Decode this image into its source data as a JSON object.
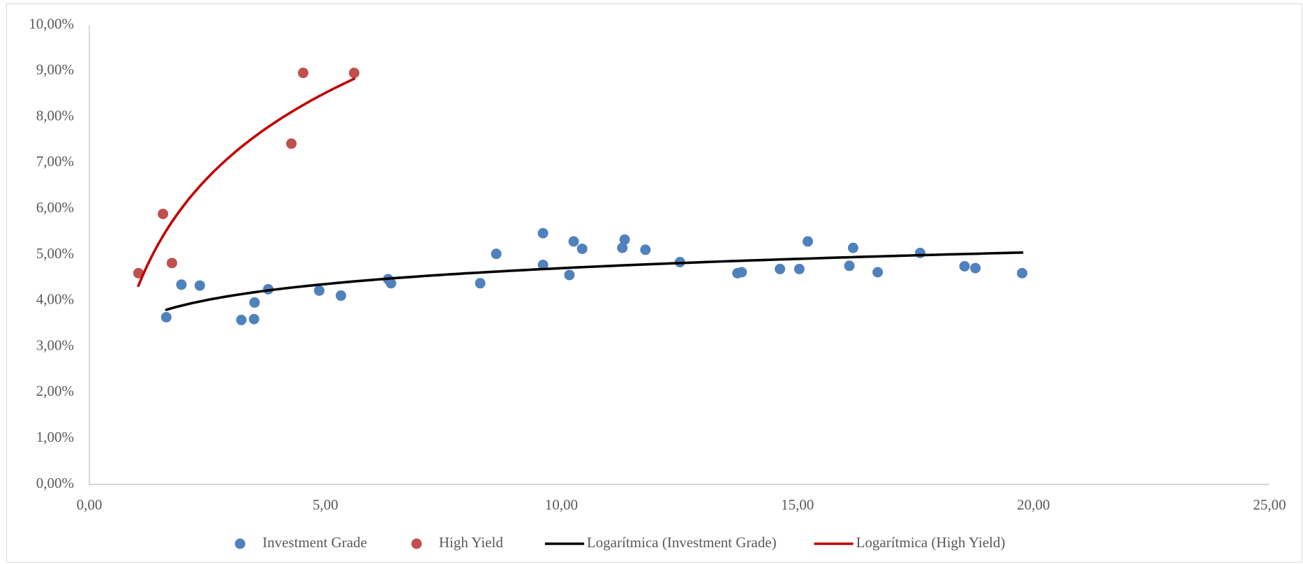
{
  "chart_data": {
    "type": "scatter",
    "xlim": [
      0,
      25
    ],
    "ylim": [
      0,
      10
    ],
    "grid": false,
    "legend": "bottom",
    "xticks": [
      {
        "value": 0,
        "label": "0,00"
      },
      {
        "value": 5,
        "label": "5,00"
      },
      {
        "value": 10,
        "label": "10,00"
      },
      {
        "value": 15,
        "label": "15,00"
      },
      {
        "value": 20,
        "label": "20,00"
      },
      {
        "value": 25,
        "label": "25,00"
      }
    ],
    "yticks": [
      {
        "value": 0,
        "label": "0,00%"
      },
      {
        "value": 1,
        "label": "1,00%"
      },
      {
        "value": 2,
        "label": "2,00%"
      },
      {
        "value": 3,
        "label": "3,00%"
      },
      {
        "value": 4,
        "label": "4,00%"
      },
      {
        "value": 5,
        "label": "5,00%"
      },
      {
        "value": 6,
        "label": "6,00%"
      },
      {
        "value": 7,
        "label": "7,00%"
      },
      {
        "value": 8,
        "label": "8,00%"
      },
      {
        "value": 9,
        "label": "9,00%"
      },
      {
        "value": 10,
        "label": "10,00%"
      }
    ],
    "series": [
      {
        "name": "Investment Grade",
        "color": "#4f81bd",
        "x": [
          1.63,
          1.95,
          2.34,
          3.22,
          3.49,
          3.5,
          3.79,
          4.87,
          5.33,
          6.33,
          6.39,
          8.28,
          8.62,
          9.61,
          9.61,
          10.17,
          10.26,
          10.44,
          11.29,
          11.34,
          11.78,
          12.51,
          13.73,
          13.82,
          14.63,
          15.04,
          15.22,
          16.1,
          16.18,
          16.7,
          17.6,
          18.54,
          18.77,
          19.76
        ],
        "values": [
          3.64,
          4.35,
          4.33,
          3.58,
          3.6,
          3.96,
          4.25,
          4.22,
          4.11,
          4.47,
          4.38,
          4.38,
          5.02,
          5.47,
          4.78,
          4.56,
          5.29,
          5.13,
          5.15,
          5.33,
          5.11,
          4.84,
          4.6,
          4.62,
          4.69,
          4.69,
          5.29,
          4.76,
          5.15,
          4.62,
          5.04,
          4.75,
          4.71,
          4.6
        ]
      },
      {
        "name": "High Yield",
        "color": "#c0504d",
        "x": [
          1.04,
          1.56,
          1.75,
          4.28,
          4.53,
          5.61
        ],
        "values": [
          4.6,
          5.89,
          4.82,
          7.42,
          8.96,
          8.96
        ]
      }
    ],
    "trendlines": [
      {
        "name": "Logarítmica (Investment Grade)",
        "color": "#000000",
        "fit": "logarithmic"
      },
      {
        "name": "Logarítmica (High Yield)",
        "color": "#c00000",
        "fit": "logarithmic"
      }
    ]
  }
}
